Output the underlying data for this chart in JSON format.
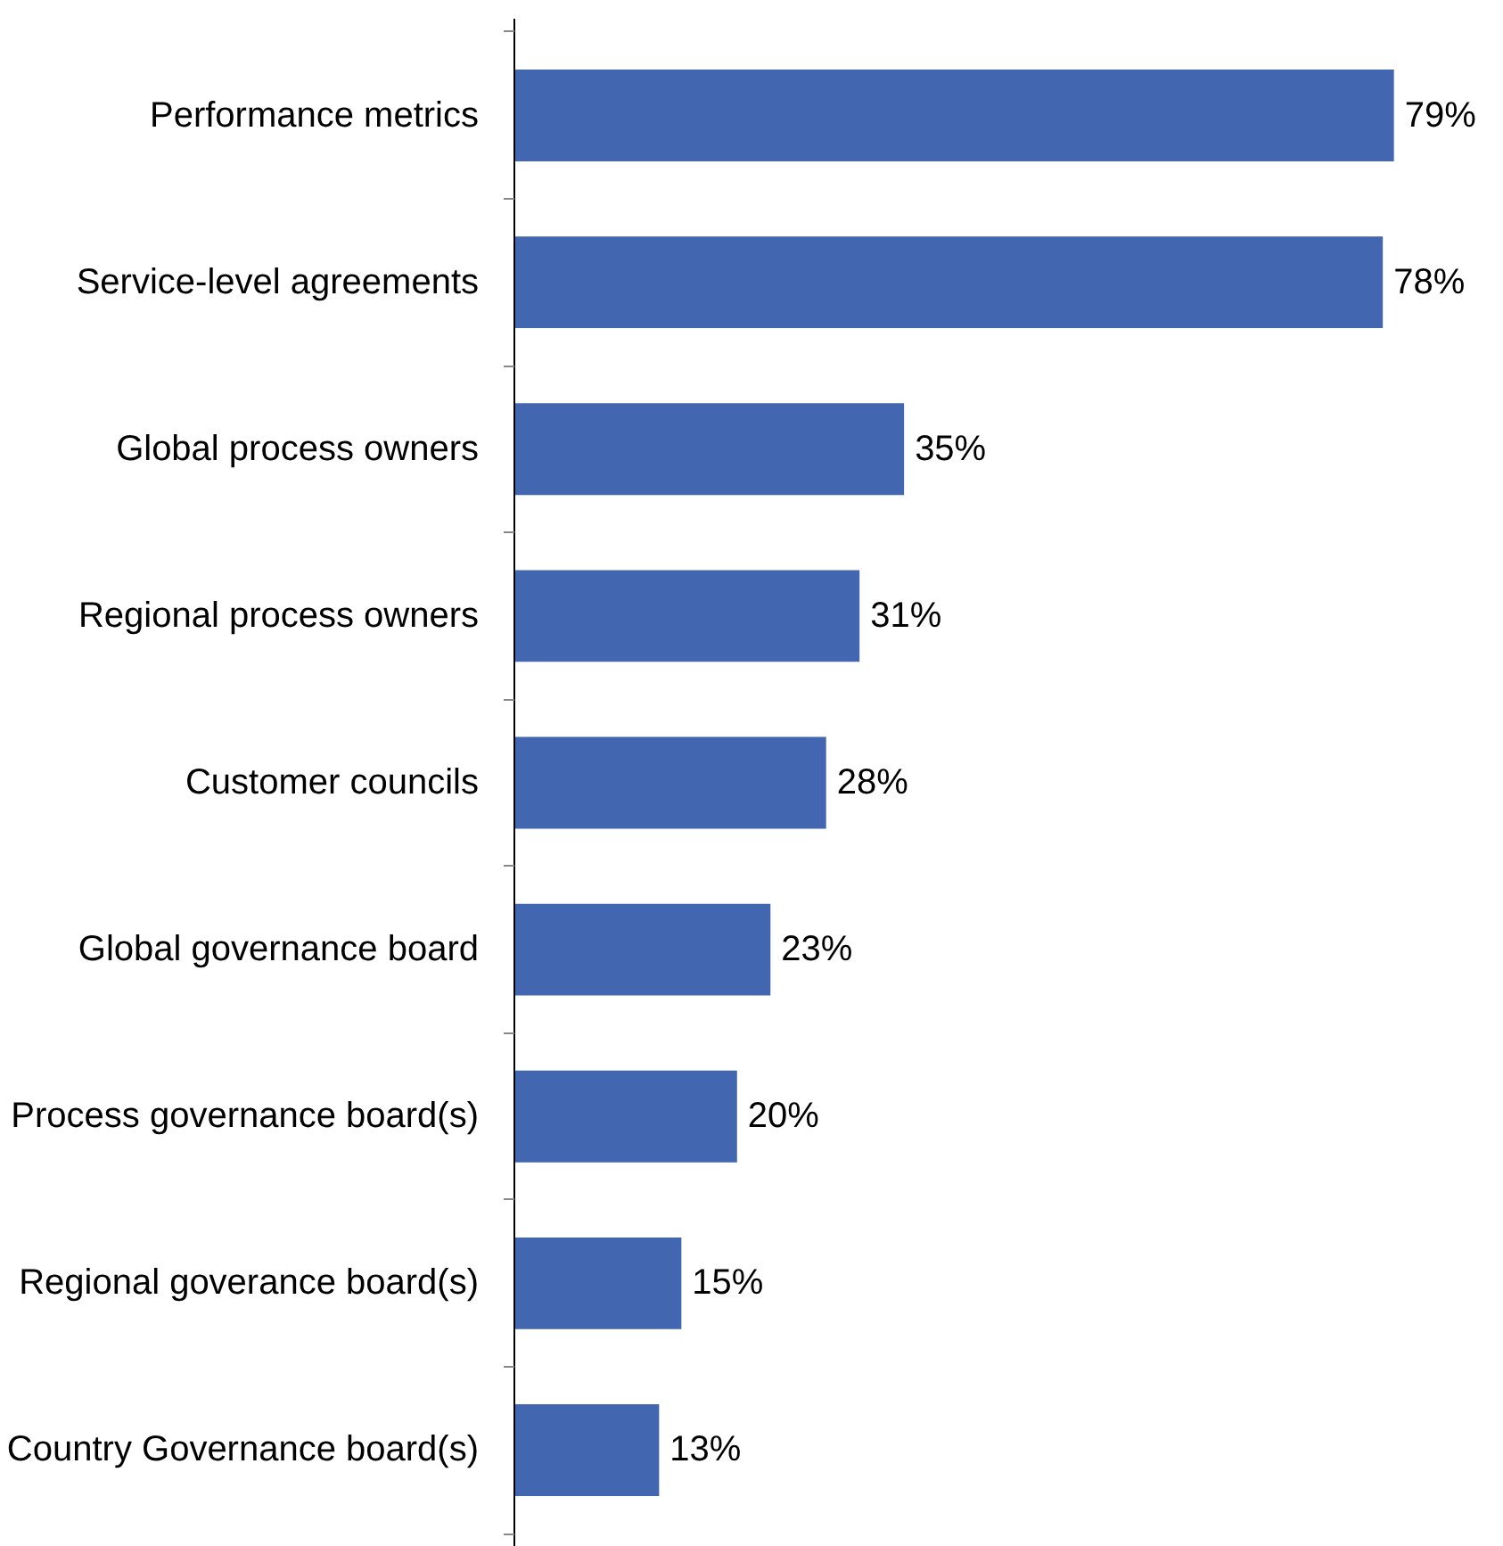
{
  "chart_data": {
    "type": "bar",
    "orientation": "horizontal",
    "categories": [
      "Performance metrics",
      "Service-level agreements",
      "Global process owners",
      "Regional process owners",
      "Customer councils",
      "Global governance board",
      "Process governance board(s)",
      "Regional goverance board(s)",
      "Country Governance board(s)"
    ],
    "values": [
      79,
      78,
      35,
      31,
      28,
      23,
      20,
      15,
      13
    ],
    "value_labels": [
      "79%",
      "78%",
      "35%",
      "31%",
      "28%",
      "23%",
      "20%",
      "15%",
      "13%"
    ],
    "color": "#4266b0",
    "grid": false
  }
}
